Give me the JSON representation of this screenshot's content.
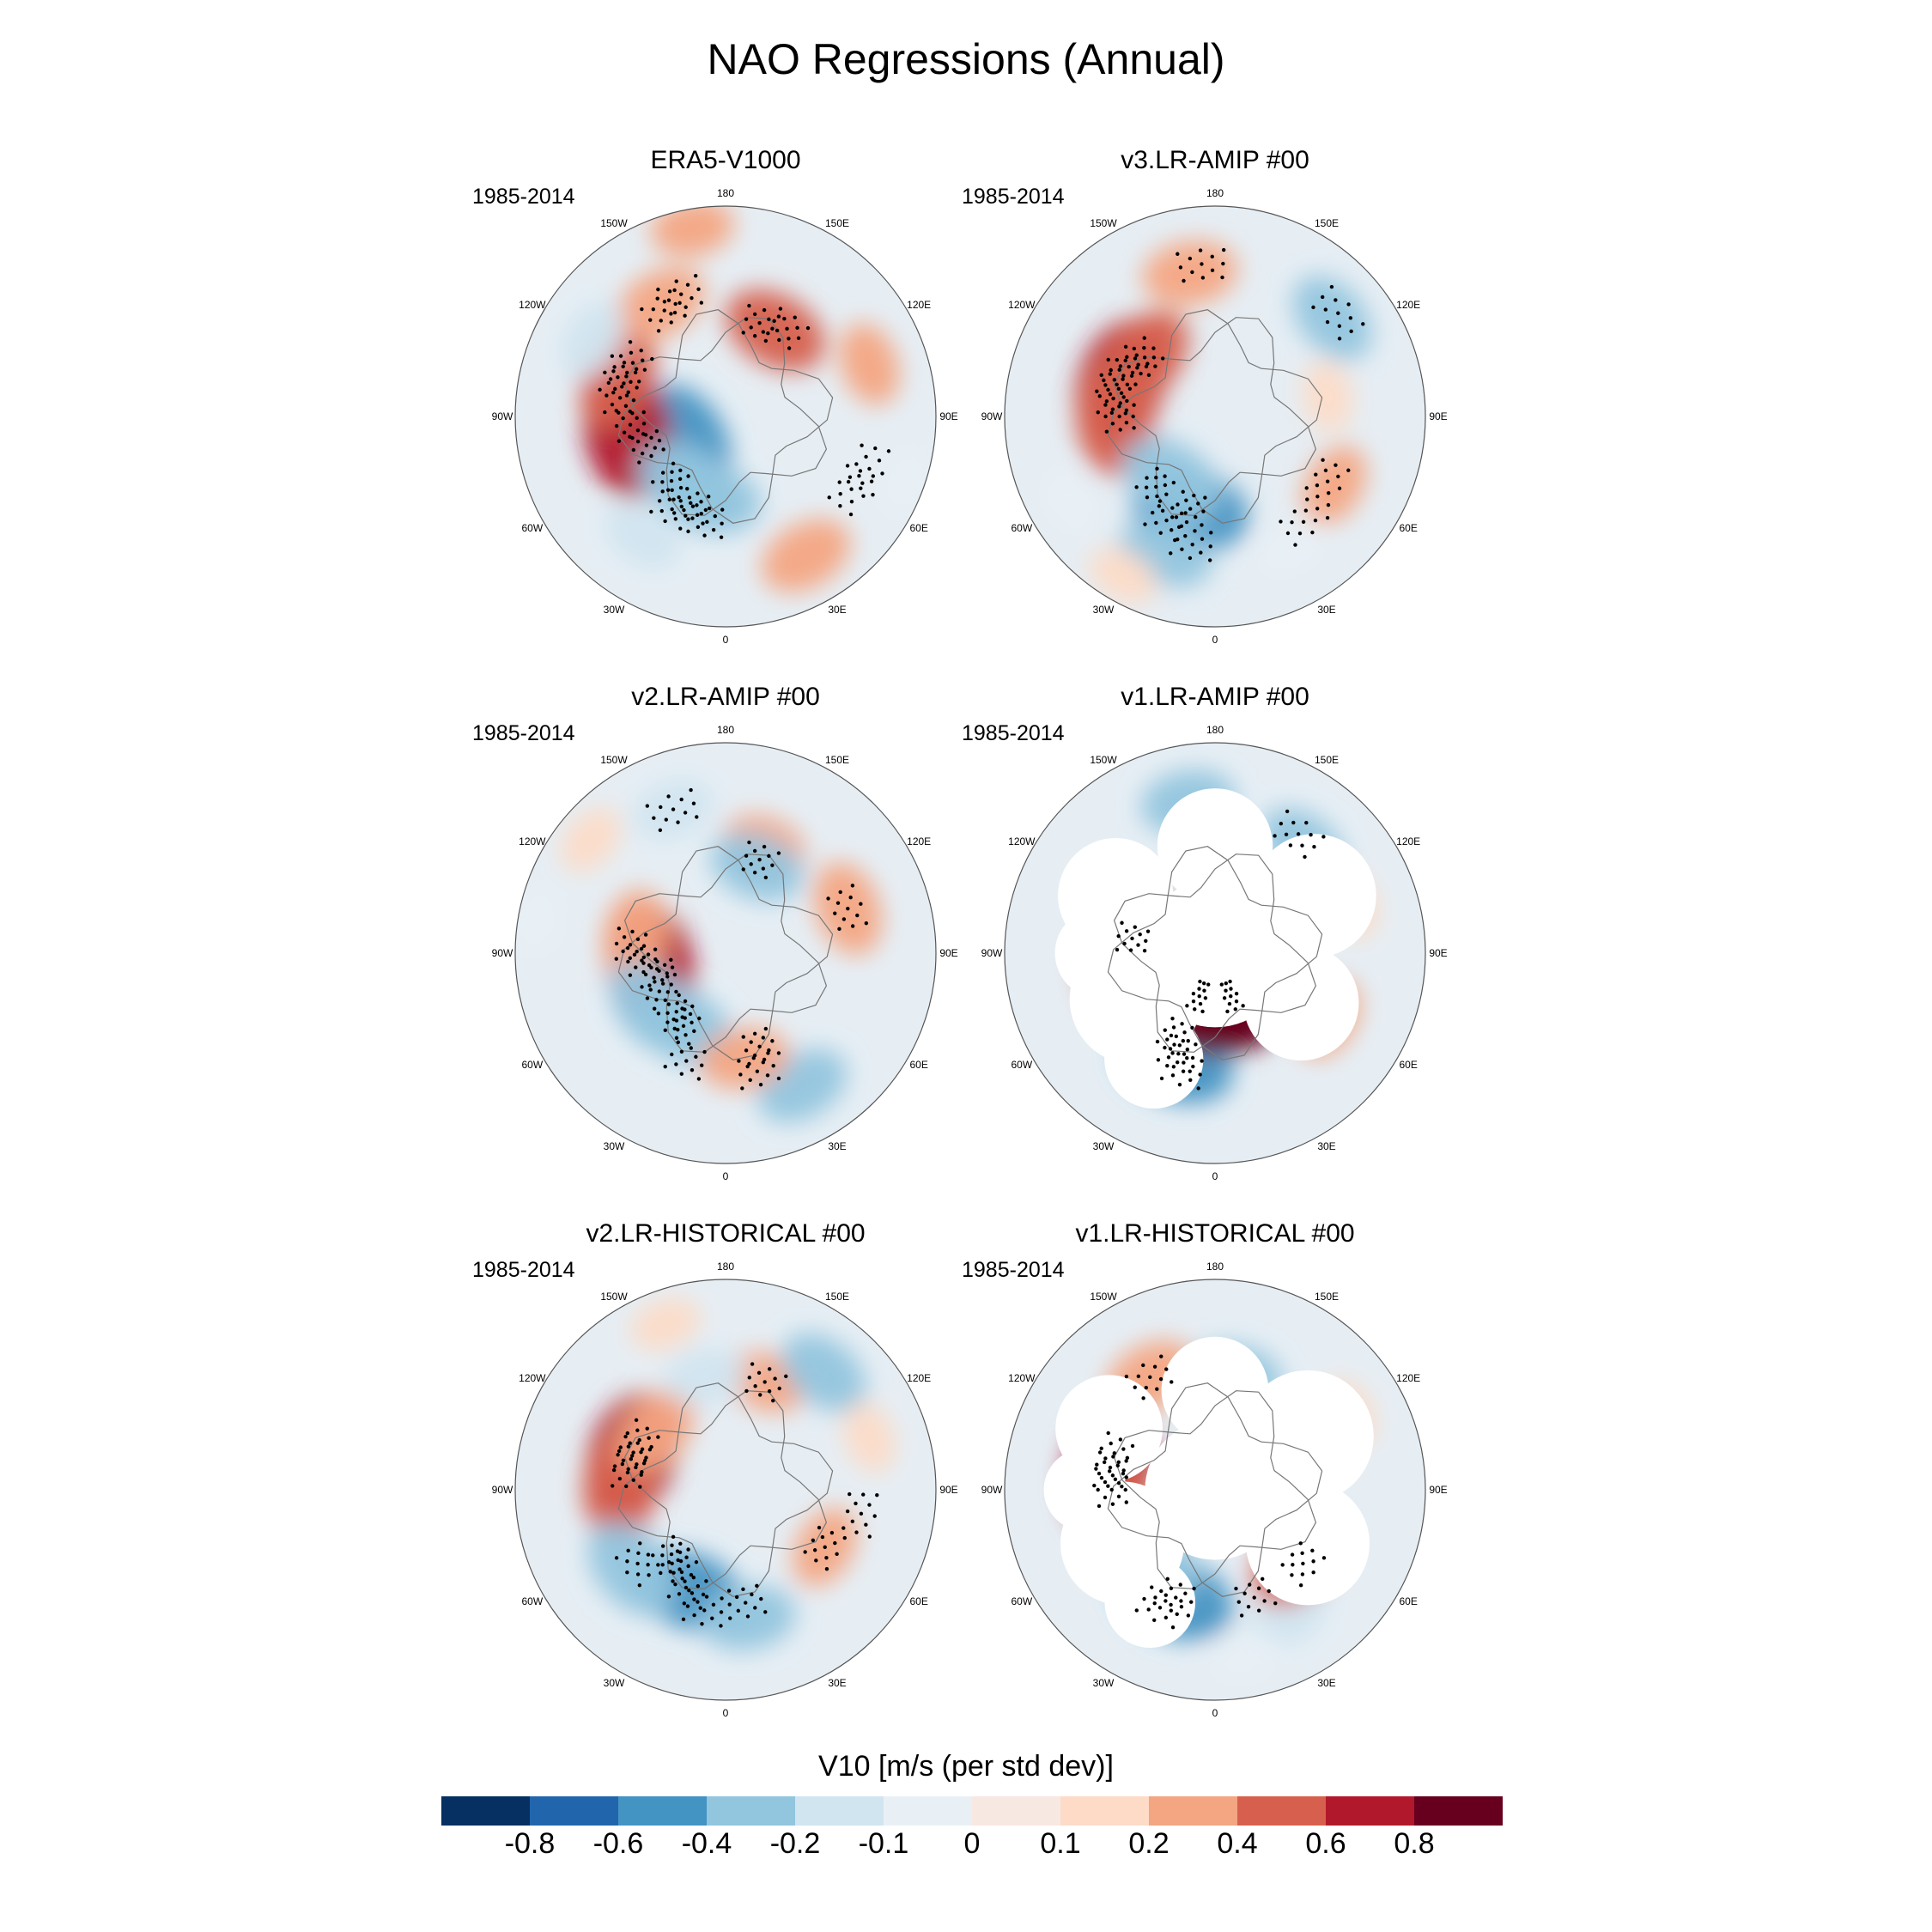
{
  "title": "NAO Regressions (Annual)",
  "panels": [
    {
      "name": "ERA5-V1000",
      "period": "1985-2014",
      "blobs": [
        [
          -0.5,
          60,
          12
        ],
        [
          0.6,
          80,
          26
        ],
        [
          0.4,
          110,
          30
        ],
        [
          -0.4,
          30,
          20
        ],
        [
          -0.35,
          10,
          22
        ],
        [
          0.4,
          210,
          26
        ],
        [
          0.3,
          150,
          34
        ],
        [
          0.2,
          170,
          50
        ],
        [
          -0.2,
          120,
          40
        ],
        [
          0.3,
          330,
          42
        ],
        [
          -0.1,
          290,
          50
        ],
        [
          0.2,
          250,
          40
        ],
        [
          -0.2,
          35,
          38
        ]
      ],
      "dots": [
        [
          20,
          25
        ],
        [
          30,
          28
        ],
        [
          10,
          28
        ],
        [
          70,
          22
        ],
        [
          85,
          25
        ],
        [
          100,
          28
        ],
        [
          110,
          30
        ],
        [
          120,
          28
        ],
        [
          150,
          32
        ],
        [
          160,
          34
        ],
        [
          200,
          26
        ],
        [
          215,
          28
        ],
        [
          290,
          40
        ],
        [
          300,
          38
        ],
        [
          40,
          22
        ]
      ]
    },
    {
      "name": "v3.LR-AMIP  #00",
      "period": "1985-2014",
      "blobs": [
        [
          0.6,
          110,
          26
        ],
        [
          0.5,
          90,
          26
        ],
        [
          0.4,
          130,
          24
        ],
        [
          -0.5,
          15,
          25
        ],
        [
          -0.4,
          35,
          20
        ],
        [
          -0.3,
          20,
          38
        ],
        [
          0.3,
          170,
          38
        ],
        [
          -0.3,
          230,
          40
        ],
        [
          0.2,
          300,
          36
        ],
        [
          -0.1,
          60,
          44
        ],
        [
          0.1,
          260,
          30
        ],
        [
          -0.1,
          330,
          40
        ],
        [
          0.1,
          30,
          48
        ]
      ],
      "dots": [
        [
          15,
          25
        ],
        [
          25,
          30
        ],
        [
          10,
          34
        ],
        [
          90,
          25
        ],
        [
          100,
          27
        ],
        [
          110,
          28
        ],
        [
          120,
          26
        ],
        [
          130,
          24
        ],
        [
          175,
          40
        ],
        [
          230,
          42
        ],
        [
          320,
          36
        ],
        [
          300,
          34
        ],
        [
          40,
          24
        ]
      ]
    },
    {
      "name": "v2.LR-AMIP  #00",
      "period": "1985-2014",
      "blobs": [
        [
          0.6,
          80,
          20
        ],
        [
          0.3,
          100,
          24
        ],
        [
          -0.4,
          30,
          22
        ],
        [
          -0.35,
          55,
          24
        ],
        [
          -0.3,
          330,
          40
        ],
        [
          0.25,
          350,
          28
        ],
        [
          0.3,
          250,
          34
        ],
        [
          0.2,
          200,
          30
        ],
        [
          -0.3,
          200,
          24
        ],
        [
          -0.2,
          160,
          40
        ],
        [
          0.1,
          130,
          46
        ],
        [
          -0.1,
          100,
          50
        ]
      ],
      "dots": [
        [
          75,
          18
        ],
        [
          85,
          22
        ],
        [
          95,
          25
        ],
        [
          20,
          30
        ],
        [
          30,
          22
        ],
        [
          40,
          20
        ],
        [
          200,
          26
        ],
        [
          250,
          34
        ],
        [
          340,
          26
        ],
        [
          160,
          40
        ],
        [
          345,
          32
        ],
        [
          60,
          20
        ]
      ]
    },
    {
      "name": "v1.LR-AMIP  #00",
      "period": "1985-2014",
      "blobs": [
        [
          0.5,
          100,
          22
        ],
        [
          0.4,
          80,
          26
        ],
        [
          -0.5,
          20,
          30
        ],
        [
          -0.3,
          40,
          20
        ],
        [
          0.9,
          340,
          12
        ],
        [
          0.9,
          20,
          12
        ],
        [
          -0.3,
          220,
          36
        ],
        [
          -0.3,
          170,
          40
        ],
        [
          0.2,
          300,
          34
        ],
        [
          0.1,
          250,
          38
        ]
      ],
      "dots": [
        [
          20,
          28
        ],
        [
          25,
          24
        ],
        [
          15,
          32
        ],
        [
          215,
          38
        ],
        [
          340,
          12
        ],
        [
          20,
          12
        ],
        [
          100,
          22
        ]
      ],
      "masks": [
        [
          0,
          0,
          36
        ],
        [
          60,
          24,
          32
        ],
        [
          120,
          30,
          28
        ],
        [
          180,
          28,
          28
        ],
        [
          240,
          30,
          30
        ],
        [
          300,
          26,
          28
        ],
        [
          30,
          32,
          24
        ],
        [
          90,
          30,
          22
        ]
      ]
    },
    {
      "name": "v2.LR-HISTORICAL  #00",
      "period": "1985-2014",
      "blobs": [
        [
          0.6,
          110,
          26
        ],
        [
          0.4,
          90,
          28
        ],
        [
          0.3,
          130,
          24
        ],
        [
          -0.45,
          20,
          28
        ],
        [
          -0.4,
          50,
          32
        ],
        [
          -0.3,
          350,
          34
        ],
        [
          0.2,
          300,
          30
        ],
        [
          0.2,
          200,
          30
        ],
        [
          -0.3,
          220,
          40
        ],
        [
          -0.2,
          170,
          30
        ],
        [
          0.1,
          250,
          40
        ],
        [
          0.1,
          160,
          46
        ]
      ],
      "dots": [
        [
          20,
          28
        ],
        [
          30,
          24
        ],
        [
          40,
          22
        ],
        [
          10,
          32
        ],
        [
          50,
          30
        ],
        [
          100,
          26
        ],
        [
          110,
          26
        ],
        [
          120,
          26
        ],
        [
          300,
          30
        ],
        [
          350,
          30
        ],
        [
          200,
          30
        ],
        [
          280,
          36
        ]
      ],
      "masks": []
    },
    {
      "name": "v1.LR-HISTORICAL  #00",
      "period": "1985-2014",
      "blobs": [
        [
          0.6,
          100,
          28
        ],
        [
          0.4,
          80,
          26
        ],
        [
          -0.5,
          20,
          30
        ],
        [
          -0.3,
          40,
          24
        ],
        [
          -0.3,
          190,
          30
        ],
        [
          0.3,
          150,
          34
        ],
        [
          -0.2,
          330,
          38
        ],
        [
          0.4,
          310,
          28
        ],
        [
          0.1,
          240,
          40
        ],
        [
          -0.1,
          350,
          44
        ]
      ],
      "dots": [
        [
          100,
          28
        ],
        [
          90,
          27
        ],
        [
          110,
          28
        ],
        [
          20,
          30
        ],
        [
          25,
          34
        ],
        [
          310,
          30
        ],
        [
          150,
          34
        ],
        [
          340,
          30
        ]
      ],
      "masks": [
        [
          0,
          0,
          34
        ],
        [
          60,
          28,
          30
        ],
        [
          120,
          32,
          26
        ],
        [
          180,
          26,
          26
        ],
        [
          240,
          28,
          32
        ],
        [
          300,
          28,
          30
        ],
        [
          30,
          34,
          22
        ],
        [
          90,
          34,
          20
        ]
      ]
    }
  ],
  "lon_labels": [
    "180",
    "150E",
    "120E",
    "90E",
    "60E",
    "30E",
    "0",
    "30W",
    "60W",
    "90W",
    "120W",
    "150W"
  ],
  "colorbar": {
    "title": "V10 [m/s (per std dev)]",
    "colors": [
      "#053061",
      "#2166ac",
      "#4393c3",
      "#92c5de",
      "#d1e5f0",
      "#e8f0f5",
      "#f8e8e2",
      "#fddbc7",
      "#f4a582",
      "#d6604d",
      "#b2182b",
      "#67001f"
    ],
    "tick_labels": [
      "-0.8",
      "-0.6",
      "-0.4",
      "-0.2",
      "-0.1",
      "0",
      "0.1",
      "0.2",
      "0.4",
      "0.6",
      "0.8"
    ]
  },
  "chart_data": [
    {
      "type": "heatmap",
      "title": "ERA5-V1000",
      "subtitle": "1985-2014",
      "units": "m/s (per std dev)",
      "projection": "north polar stereographic"
    },
    {
      "type": "heatmap",
      "title": "v3.LR-AMIP  #00",
      "subtitle": "1985-2014",
      "units": "m/s (per std dev)",
      "projection": "north polar stereographic"
    },
    {
      "type": "heatmap",
      "title": "v2.LR-AMIP  #00",
      "subtitle": "1985-2014",
      "units": "m/s (per std dev)",
      "projection": "north polar stereographic"
    },
    {
      "type": "heatmap",
      "title": "v1.LR-AMIP  #00",
      "subtitle": "1985-2014",
      "units": "m/s (per std dev)",
      "projection": "north polar stereographic"
    },
    {
      "type": "heatmap",
      "title": "v2.LR-HISTORICAL  #00",
      "subtitle": "1985-2014",
      "units": "m/s (per std dev)",
      "projection": "north polar stereographic"
    },
    {
      "type": "heatmap",
      "title": "v1.LR-HISTORICAL  #00",
      "subtitle": "1985-2014",
      "units": "m/s (per std dev)",
      "projection": "north polar stereographic"
    }
  ]
}
